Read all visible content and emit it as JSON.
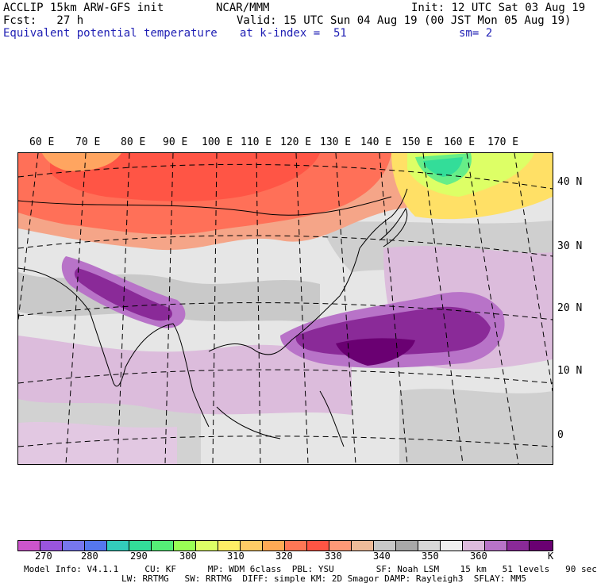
{
  "header": {
    "model": "ACCLIP 15km ARW-GFS init",
    "org": "NCAR/MMM",
    "init": "Init: 12 UTC Sat 03 Aug 19",
    "fcst": "Fcst:   27 h",
    "valid": "Valid: 15 UTC Sun 04 Aug 19 (00 JST Mon 05 Aug 19)",
    "field": "Equivalent potential temperature",
    "level": "at k-index =  51",
    "smooth": "sm= 2"
  },
  "map": {
    "lon_labels": [
      "60 E",
      "70 E",
      "80 E",
      "90 E",
      "100 E",
      "110 E",
      "120 E",
      "130 E",
      "140 E",
      "150 E",
      "160 E",
      "170 E"
    ],
    "lat_labels": [
      "40 N",
      "30 N",
      "20 N",
      "10 N",
      "0"
    ]
  },
  "colorbar": {
    "colors": [
      "#cc55cc",
      "#9955dd",
      "#7777ee",
      "#5577ee",
      "#33ccbb",
      "#33dd99",
      "#55ee77",
      "#99ff55",
      "#ddff66",
      "#ffee66",
      "#ffcc66",
      "#ffaa55",
      "#ff7755",
      "#ff5544",
      "#ff9977",
      "#eebb99",
      "#c8c8c8",
      "#a8a8a8",
      "#d8d8d8",
      "#f0f0f0",
      "#ddbbdd",
      "#b873c8",
      "#8a2a98",
      "#6a0072"
    ],
    "ticks": [
      "270",
      "280",
      "290",
      "300",
      "310",
      "320",
      "330",
      "340",
      "350",
      "360",
      "K"
    ]
  },
  "footer": {
    "line1": "Model Info: V4.1.1     CU: KF      MP: WDM 6class  PBL: YSU        SF: Noah LSM    15 km   51 levels   90 sec",
    "line2": "LW: RRTMG   SW: RRTMG  DIFF: simple KM: 2D Smagor DAMP: Rayleigh3  SFLAY: MM5"
  }
}
